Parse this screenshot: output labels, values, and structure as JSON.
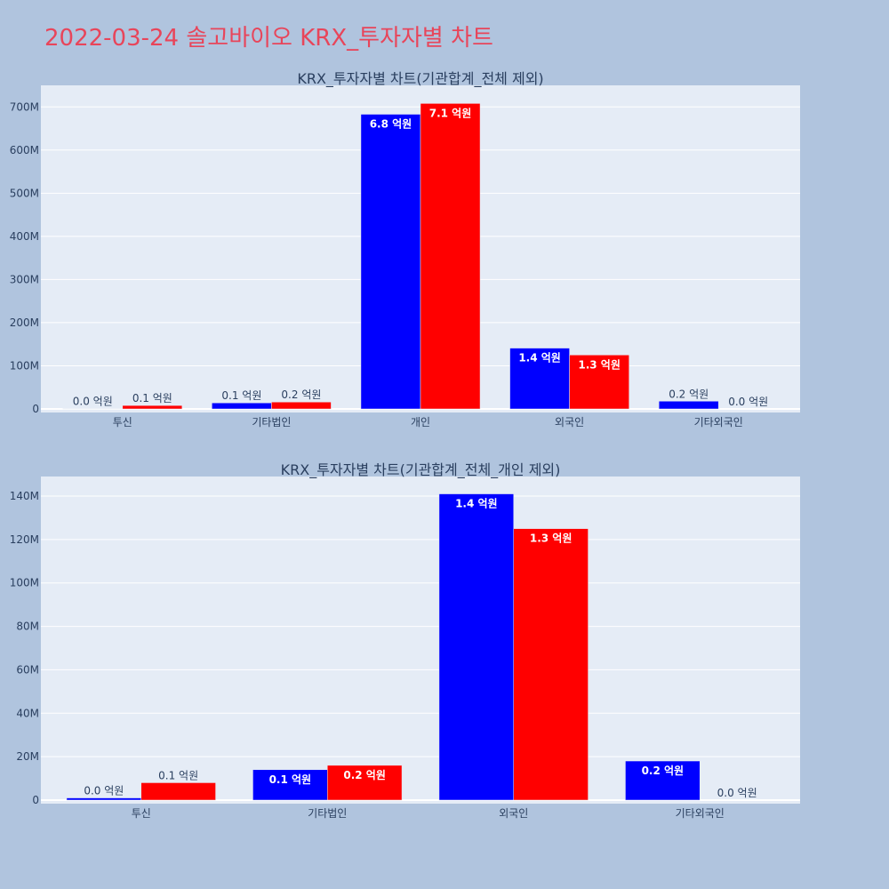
{
  "page": {
    "title": "2022-03-24 솔고바이오 KRX_투자자별 차트"
  },
  "colors": {
    "background": "#b0c4de",
    "plot_bg": "#e5ecf6",
    "grid": "#ffffff",
    "title": "#e8455a",
    "text": "#2a3f5f",
    "series_a": "#0000ff",
    "series_b": "#ff0000"
  },
  "chart_data": [
    {
      "type": "bar",
      "title": "KRX_투자자별 차트(기관합계_전체 제외)",
      "categories": [
        "투신",
        "기타법인",
        "개인",
        "외국인",
        "기타외국인"
      ],
      "series": [
        {
          "color": "#0000ff",
          "values": [
            1000000,
            14000000,
            683000000,
            141000000,
            18000000
          ],
          "labels": [
            "0.0 억원",
            "0.1 억원",
            "6.8 억원",
            "1.4 억원",
            "0.2 억원"
          ]
        },
        {
          "color": "#ff0000",
          "values": [
            8000000,
            16000000,
            708000000,
            125000000,
            0
          ],
          "labels": [
            "0.1 억원",
            "0.2 억원",
            "7.1 억원",
            "1.3 억원",
            "0.0 억원"
          ]
        }
      ],
      "ylim": [
        0,
        750000000
      ],
      "yticks": [
        0,
        100000000,
        200000000,
        300000000,
        400000000,
        500000000,
        600000000,
        700000000
      ],
      "ytick_labels": [
        "0",
        "100M",
        "200M",
        "300M",
        "400M",
        "500M",
        "600M",
        "700M"
      ],
      "grid": true
    },
    {
      "type": "bar",
      "title": "KRX_투자자별 차트(기관합계_전체_개인 제외)",
      "categories": [
        "투신",
        "기타법인",
        "외국인",
        "기타외국인"
      ],
      "series": [
        {
          "color": "#0000ff",
          "values": [
            1000000,
            14000000,
            141000000,
            18000000
          ],
          "labels": [
            "0.0 억원",
            "0.1 억원",
            "1.4 억원",
            "0.2 억원"
          ]
        },
        {
          "color": "#ff0000",
          "values": [
            8000000,
            16000000,
            125000000,
            0
          ],
          "labels": [
            "0.1 억원",
            "0.2 억원",
            "1.3 억원",
            "0.0 억원"
          ]
        }
      ],
      "ylim": [
        0,
        149000000
      ],
      "yticks": [
        0,
        20000000,
        40000000,
        60000000,
        80000000,
        100000000,
        120000000,
        140000000
      ],
      "ytick_labels": [
        "0",
        "20M",
        "40M",
        "60M",
        "80M",
        "100M",
        "120M",
        "140M"
      ],
      "grid": true
    }
  ]
}
